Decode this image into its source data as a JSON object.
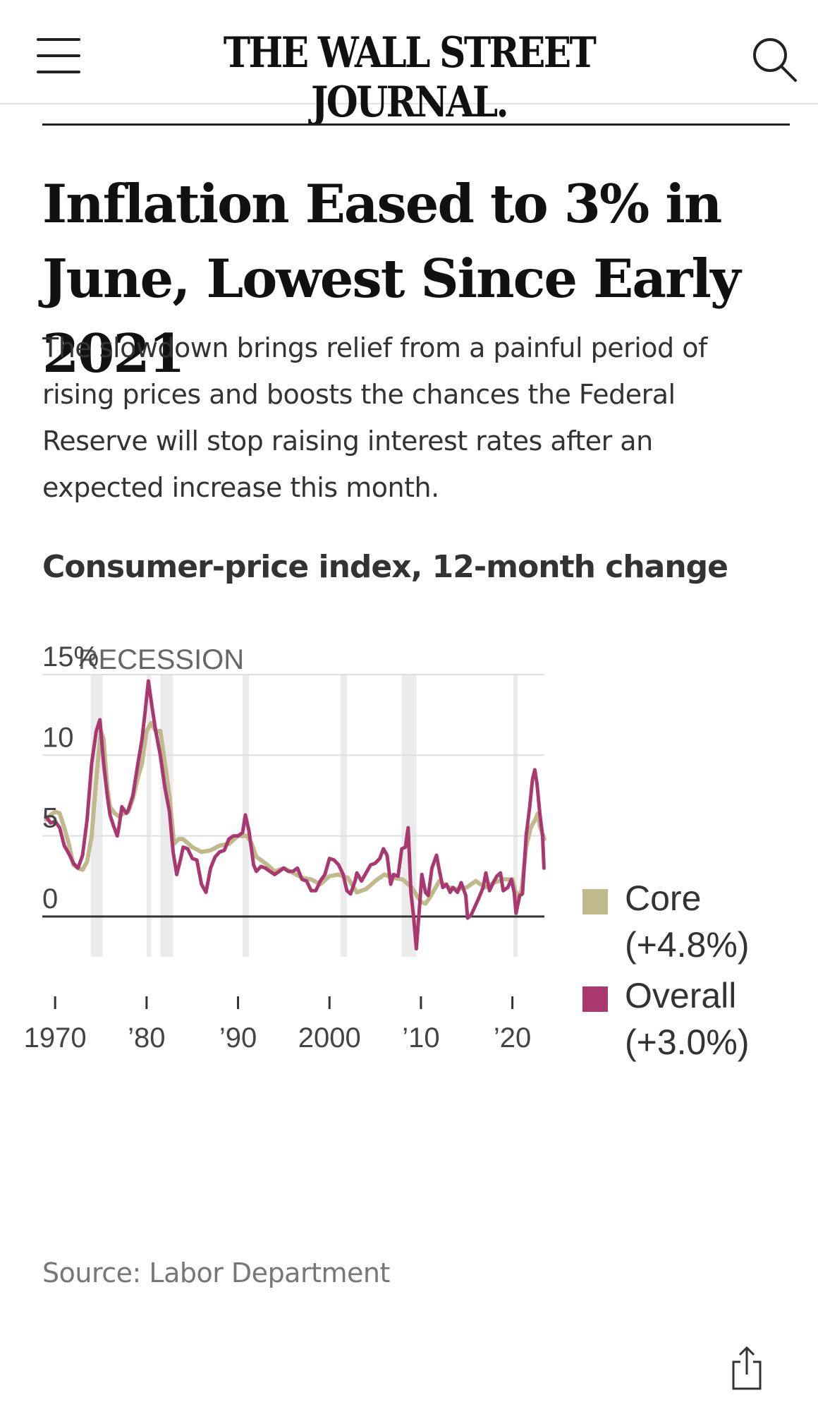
{
  "header": {
    "logo_text": "THE WALL STREET JOURNAL.",
    "menu_icon": "hamburger-menu-icon",
    "search_icon": "search-icon"
  },
  "article": {
    "headline": "Inflation Eased to 3% in June, Lowest Since Early 2021",
    "dek": "The slowdown brings relief from a painful period of rising prices and boosts the chances the Federal Reserve will stop raising interest rates after an expected increase this month."
  },
  "chart_data": {
    "type": "line",
    "title": "Consumer-price index, 12-month change",
    "ylim": [
      -2.5,
      15
    ],
    "xlim": [
      1968.6,
      2023.5
    ],
    "yticks": [
      {
        "value": 15,
        "label": "15%"
      },
      {
        "value": 10,
        "label": "10"
      },
      {
        "value": 5,
        "label": "5"
      },
      {
        "value": 0,
        "label": "0"
      }
    ],
    "xticks": [
      {
        "value": 1970,
        "label": "1970"
      },
      {
        "value": 1980,
        "label": "’80"
      },
      {
        "value": 1990,
        "label": "’90"
      },
      {
        "value": 2000,
        "label": "2000"
      },
      {
        "value": 2010,
        "label": "’10"
      },
      {
        "value": 2020,
        "label": "’20"
      }
    ],
    "recession_label": "RECESSION",
    "recessions": [
      [
        1973.9,
        1975.2
      ],
      [
        1980.0,
        1980.5
      ],
      [
        1981.5,
        1982.9
      ],
      [
        1990.5,
        1991.2
      ],
      [
        2001.2,
        2001.9
      ],
      [
        2007.9,
        2009.5
      ],
      [
        2020.1,
        2020.4
      ]
    ],
    "series": [
      {
        "name": "Core",
        "legend_label": "Core",
        "legend_value": "(+4.8%)",
        "color": "#c0b98c",
        "points": [
          [
            1969.0,
            6.0
          ],
          [
            1969.5,
            6.3
          ],
          [
            1970.0,
            6.5
          ],
          [
            1970.5,
            6.4
          ],
          [
            1971.0,
            5.5
          ],
          [
            1971.5,
            4.5
          ],
          [
            1972.0,
            3.2
          ],
          [
            1972.5,
            3.0
          ],
          [
            1973.0,
            2.9
          ],
          [
            1973.5,
            3.4
          ],
          [
            1974.0,
            5.0
          ],
          [
            1974.5,
            8.5
          ],
          [
            1975.0,
            11.5
          ],
          [
            1975.3,
            11.0
          ],
          [
            1975.7,
            8.0
          ],
          [
            1976.0,
            6.8
          ],
          [
            1976.5,
            6.4
          ],
          [
            1977.0,
            6.2
          ],
          [
            1977.5,
            6.4
          ],
          [
            1978.0,
            6.5
          ],
          [
            1978.5,
            7.3
          ],
          [
            1979.0,
            8.5
          ],
          [
            1979.5,
            9.5
          ],
          [
            1980.0,
            11.5
          ],
          [
            1980.5,
            12.0
          ],
          [
            1981.0,
            11.5
          ],
          [
            1981.5,
            11.5
          ],
          [
            1982.0,
            9.5
          ],
          [
            1982.5,
            7.5
          ],
          [
            1983.0,
            4.5
          ],
          [
            1983.5,
            4.8
          ],
          [
            1984.0,
            4.8
          ],
          [
            1985.0,
            4.3
          ],
          [
            1986.0,
            4.0
          ],
          [
            1987.0,
            4.1
          ],
          [
            1988.0,
            4.4
          ],
          [
            1989.0,
            4.5
          ],
          [
            1990.0,
            5.0
          ],
          [
            1991.0,
            5.0
          ],
          [
            1991.5,
            4.5
          ],
          [
            1992.0,
            3.7
          ],
          [
            1993.0,
            3.3
          ],
          [
            1994.0,
            2.8
          ],
          [
            1995.0,
            3.0
          ],
          [
            1996.0,
            2.7
          ],
          [
            1997.0,
            2.4
          ],
          [
            1998.0,
            2.3
          ],
          [
            1999.0,
            2.0
          ],
          [
            2000.0,
            2.5
          ],
          [
            2001.0,
            2.6
          ],
          [
            2002.0,
            2.4
          ],
          [
            2003.0,
            1.5
          ],
          [
            2004.0,
            1.7
          ],
          [
            2005.0,
            2.2
          ],
          [
            2006.0,
            2.6
          ],
          [
            2007.0,
            2.4
          ],
          [
            2008.0,
            2.3
          ],
          [
            2009.0,
            1.8
          ],
          [
            2010.0,
            0.9
          ],
          [
            2010.5,
            0.8
          ],
          [
            2011.0,
            1.2
          ],
          [
            2012.0,
            2.2
          ],
          [
            2013.0,
            1.8
          ],
          [
            2014.0,
            1.7
          ],
          [
            2015.0,
            1.8
          ],
          [
            2016.0,
            2.2
          ],
          [
            2017.0,
            1.8
          ],
          [
            2018.0,
            2.1
          ],
          [
            2019.0,
            2.3
          ],
          [
            2020.0,
            2.3
          ],
          [
            2020.5,
            1.2
          ],
          [
            2021.0,
            1.6
          ],
          [
            2021.5,
            4.3
          ],
          [
            2022.0,
            5.5
          ],
          [
            2022.5,
            6.0
          ],
          [
            2022.8,
            6.4
          ],
          [
            2023.0,
            5.6
          ],
          [
            2023.5,
            4.8
          ]
        ]
      },
      {
        "name": "Overall",
        "legend_label": "Overall",
        "legend_value": "(+3.0%)",
        "color": "#a8386f",
        "points": [
          [
            1969.0,
            6.2
          ],
          [
            1969.5,
            5.8
          ],
          [
            1970.0,
            5.9
          ],
          [
            1970.5,
            5.5
          ],
          [
            1971.0,
            4.4
          ],
          [
            1971.5,
            3.9
          ],
          [
            1972.0,
            3.3
          ],
          [
            1972.5,
            3.0
          ],
          [
            1973.0,
            3.8
          ],
          [
            1973.5,
            6.0
          ],
          [
            1974.0,
            9.5
          ],
          [
            1974.5,
            11.5
          ],
          [
            1974.9,
            12.2
          ],
          [
            1975.3,
            9.5
          ],
          [
            1975.7,
            7.5
          ],
          [
            1976.0,
            6.3
          ],
          [
            1976.4,
            5.6
          ],
          [
            1976.8,
            5.0
          ],
          [
            1977.0,
            5.6
          ],
          [
            1977.3,
            6.8
          ],
          [
            1977.8,
            6.4
          ],
          [
            1978.0,
            6.6
          ],
          [
            1978.5,
            7.5
          ],
          [
            1979.0,
            9.3
          ],
          [
            1979.5,
            11.0
          ],
          [
            1979.8,
            12.5
          ],
          [
            1980.2,
            14.6
          ],
          [
            1980.6,
            13.0
          ],
          [
            1981.0,
            11.5
          ],
          [
            1981.5,
            10.0
          ],
          [
            1982.0,
            8.0
          ],
          [
            1982.5,
            6.5
          ],
          [
            1982.9,
            4.0
          ],
          [
            1983.3,
            2.6
          ],
          [
            1983.7,
            3.5
          ],
          [
            1984.0,
            4.3
          ],
          [
            1984.5,
            4.2
          ],
          [
            1985.0,
            3.6
          ],
          [
            1985.5,
            3.5
          ],
          [
            1986.0,
            2.0
          ],
          [
            1986.5,
            1.5
          ],
          [
            1987.0,
            3.0
          ],
          [
            1987.5,
            3.7
          ],
          [
            1988.0,
            4.0
          ],
          [
            1988.5,
            4.1
          ],
          [
            1989.0,
            4.8
          ],
          [
            1989.5,
            5.0
          ],
          [
            1990.0,
            5.0
          ],
          [
            1990.5,
            5.2
          ],
          [
            1990.8,
            6.3
          ],
          [
            1991.2,
            5.3
          ],
          [
            1991.7,
            3.2
          ],
          [
            1992.0,
            2.8
          ],
          [
            1992.5,
            3.1
          ],
          [
            1993.0,
            3.0
          ],
          [
            1993.5,
            2.8
          ],
          [
            1994.0,
            2.6
          ],
          [
            1994.5,
            2.8
          ],
          [
            1995.0,
            3.0
          ],
          [
            1995.5,
            2.8
          ],
          [
            1996.0,
            2.8
          ],
          [
            1996.5,
            3.0
          ],
          [
            1997.0,
            2.3
          ],
          [
            1997.5,
            2.2
          ],
          [
            1998.0,
            1.6
          ],
          [
            1998.5,
            1.6
          ],
          [
            1999.0,
            2.2
          ],
          [
            1999.5,
            2.6
          ],
          [
            2000.0,
            3.6
          ],
          [
            2000.5,
            3.5
          ],
          [
            2001.0,
            3.2
          ],
          [
            2001.5,
            2.6
          ],
          [
            2001.9,
            1.6
          ],
          [
            2002.3,
            1.4
          ],
          [
            2002.8,
            2.2
          ],
          [
            2003.0,
            2.7
          ],
          [
            2003.5,
            2.2
          ],
          [
            2004.0,
            2.7
          ],
          [
            2004.5,
            3.2
          ],
          [
            2005.0,
            3.3
          ],
          [
            2005.5,
            3.6
          ],
          [
            2005.9,
            4.2
          ],
          [
            2006.3,
            3.8
          ],
          [
            2006.7,
            2.0
          ],
          [
            2007.0,
            2.6
          ],
          [
            2007.5,
            2.5
          ],
          [
            2007.9,
            4.2
          ],
          [
            2008.3,
            4.3
          ],
          [
            2008.6,
            5.5
          ],
          [
            2008.9,
            1.5
          ],
          [
            2009.2,
            0.0
          ],
          [
            2009.5,
            -2.0
          ],
          [
            2009.9,
            1.0
          ],
          [
            2010.1,
            2.6
          ],
          [
            2010.5,
            1.5
          ],
          [
            2010.8,
            1.3
          ],
          [
            2011.2,
            3.0
          ],
          [
            2011.7,
            3.8
          ],
          [
            2012.0,
            2.9
          ],
          [
            2012.4,
            1.8
          ],
          [
            2012.8,
            2.0
          ],
          [
            2013.2,
            1.5
          ],
          [
            2013.5,
            1.8
          ],
          [
            2014.0,
            1.5
          ],
          [
            2014.4,
            2.1
          ],
          [
            2014.9,
            1.3
          ],
          [
            2015.1,
            -0.1
          ],
          [
            2015.5,
            0.1
          ],
          [
            2015.9,
            0.6
          ],
          [
            2016.3,
            1.1
          ],
          [
            2016.8,
            1.8
          ],
          [
            2017.1,
            2.7
          ],
          [
            2017.5,
            1.6
          ],
          [
            2017.9,
            2.1
          ],
          [
            2018.3,
            2.5
          ],
          [
            2018.7,
            2.7
          ],
          [
            2019.0,
            1.6
          ],
          [
            2019.5,
            1.8
          ],
          [
            2019.9,
            2.3
          ],
          [
            2020.2,
            1.5
          ],
          [
            2020.4,
            0.2
          ],
          [
            2020.8,
            1.3
          ],
          [
            2021.1,
            1.4
          ],
          [
            2021.5,
            5.0
          ],
          [
            2021.9,
            6.8
          ],
          [
            2022.2,
            8.5
          ],
          [
            2022.45,
            9.1
          ],
          [
            2022.7,
            8.2
          ],
          [
            2023.0,
            6.4
          ],
          [
            2023.3,
            5.0
          ],
          [
            2023.45,
            3.0
          ]
        ]
      }
    ],
    "source": "Source: Labor Department"
  }
}
